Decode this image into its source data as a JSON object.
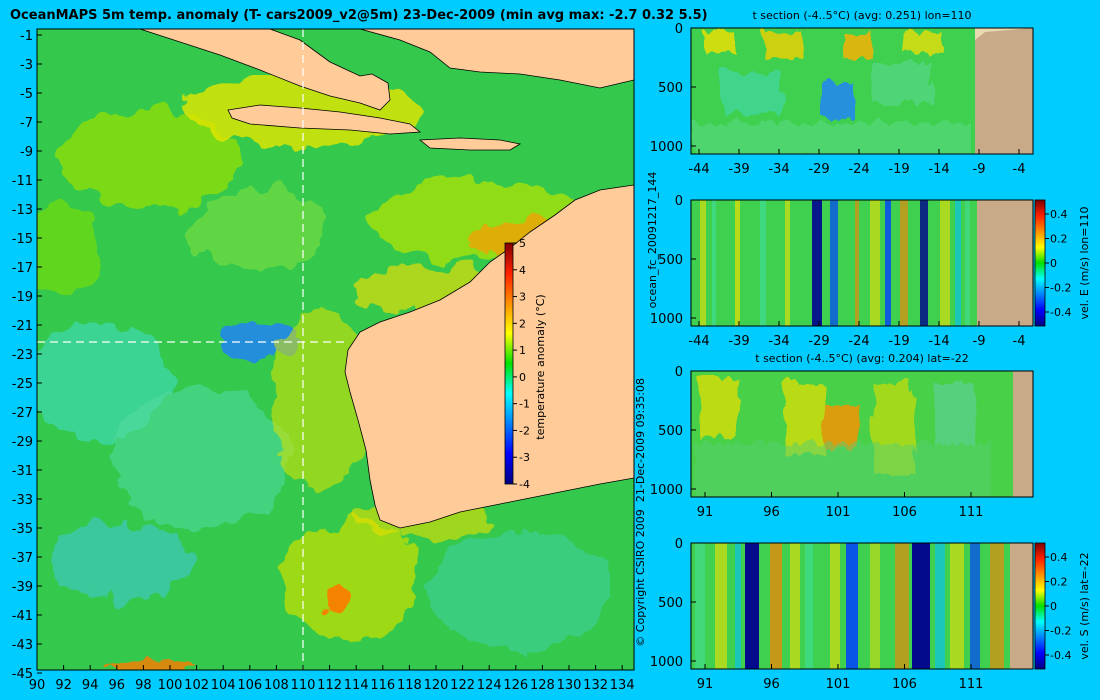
{
  "main_map": {
    "title": "OceanMAPS 5m temp. anomaly (T- cars2009_v2@5m) 23-Dec-2009 (min avg max: -2.7 0.32 5.5)",
    "lon_ticks": [
      "90",
      "92",
      "94",
      "96",
      "98",
      "100",
      "102",
      "104",
      "106",
      "108",
      "110",
      "112",
      "114",
      "116",
      "118",
      "120",
      "122",
      "124",
      "126",
      "128",
      "130",
      "132",
      "134"
    ],
    "lat_ticks": [
      "-1",
      "-3",
      "-5",
      "-7",
      "-9",
      "-11",
      "-13",
      "-15",
      "-17",
      "-19",
      "-21",
      "-23",
      "-25",
      "-27",
      "-29",
      "-31",
      "-33",
      "-35",
      "-37",
      "-39",
      "-41",
      "-43",
      "-45"
    ],
    "colorbar": {
      "label": "temperature anomaly (°C)",
      "ticks": [
        "5",
        "4",
        "3",
        "2",
        "1",
        "0",
        "-1",
        "-2",
        "-3",
        "-4"
      ]
    }
  },
  "side_text": {
    "forecast_id": "ocean_fc_20091217_144",
    "run_time": "21-Dec-2009 09:35:08",
    "copyright": "© Copyright CSIRO 2009"
  },
  "panels": [
    {
      "title": "t section (-4..5°C) (avg: 0.251) lon=110",
      "x_ticks": [
        "-44",
        "-39",
        "-34",
        "-29",
        "-24",
        "-19",
        "-14",
        "-9",
        "-4"
      ],
      "y_ticks": [
        "0",
        "500",
        "1000"
      ]
    },
    {
      "title": "",
      "x_ticks": [
        "-44",
        "-39",
        "-34",
        "-29",
        "-24",
        "-19",
        "-14",
        "-9",
        "-4"
      ],
      "y_ticks": [
        "0",
        "500",
        "1000"
      ],
      "cbar_label": "vel. E (m/s) lon=110",
      "cbar_ticks": [
        "0.4",
        "0.2",
        "0",
        "-0.2",
        "-0.4"
      ]
    },
    {
      "title": "t section (-4..5°C) (avg: 0.204) lat=-22",
      "x_ticks": [
        "91",
        "96",
        "101",
        "106",
        "111"
      ],
      "y_ticks": [
        "0",
        "500",
        "1000"
      ]
    },
    {
      "title": "",
      "x_ticks": [
        "91",
        "96",
        "101",
        "106",
        "111"
      ],
      "y_ticks": [
        "0",
        "500",
        "1000"
      ],
      "cbar_label": "vel. S (m/s) lat=-22",
      "cbar_ticks": [
        "0.4",
        "0.2",
        "0",
        "-0.2",
        "-0.4"
      ]
    }
  ],
  "chart_data": [
    {
      "type": "heatmap",
      "title": "OceanMAPS 5m temp. anomaly (T- cars2009_v2@5m) 23-Dec-2009 (min avg max: -2.7 0.32 5.5)",
      "xlabel": "",
      "ylabel": "",
      "xlim": [
        90,
        135
      ],
      "ylim": [
        -45,
        0
      ],
      "color_range": [
        -4,
        5
      ],
      "stats": {
        "min": -2.7,
        "avg": 0.32,
        "max": 5.5
      },
      "section_lines": {
        "lon": 110,
        "lat": -22
      }
    },
    {
      "type": "heatmap",
      "title": "t section (-4..5°C) (avg: 0.251) lon=110",
      "xlim": [
        -45,
        -1
      ],
      "ylim": [
        1000,
        0
      ],
      "color_range": [
        -4,
        5
      ],
      "avg": 0.251
    },
    {
      "type": "heatmap",
      "title": "",
      "ylabel": "vel. E (m/s) lon=110",
      "xlim": [
        -45,
        -1
      ],
      "ylim": [
        1000,
        0
      ],
      "color_range": [
        -0.4,
        0.4
      ]
    },
    {
      "type": "heatmap",
      "title": "t section (-4..5°C) (avg: 0.204) lat=-22",
      "xlim": [
        89,
        115
      ],
      "ylim": [
        1000,
        0
      ],
      "color_range": [
        -4,
        5
      ],
      "avg": 0.204
    },
    {
      "type": "heatmap",
      "title": "",
      "ylabel": "vel. S (m/s) lat=-22",
      "xlim": [
        89,
        115
      ],
      "ylim": [
        1000,
        0
      ],
      "color_range": [
        -0.4,
        0.4
      ]
    }
  ],
  "colors": {
    "background": "#00ccff",
    "land": "#ffcc99",
    "land_section": "#c8aa88"
  }
}
